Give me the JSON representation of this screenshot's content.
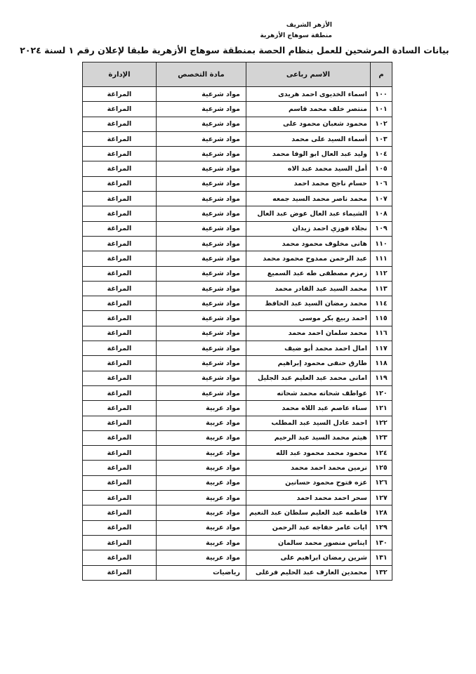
{
  "header": {
    "line1": "الأزهر الشريف",
    "line2": "منطقة سوهاج الأزهرية"
  },
  "title": "بيانات السادة المرشحين للعمل بنظام الحصة بمنطقة سوهاج الأزهرية طبقا لإعلان رقم ١ لسنة ٢٠٢٤",
  "table": {
    "columns": [
      "م",
      "الاسم رباعى",
      "مادة التخصص",
      "الإدارة"
    ],
    "rows": [
      [
        "١٠٠",
        "اسماء الخديوى احمد هريدى",
        "مواد شرعية",
        "المراغة"
      ],
      [
        "١٠١",
        "منتصر خلف محمد قاسم",
        "مواد شرعية",
        "المراغة"
      ],
      [
        "١٠٢",
        "محمود شعبان محمود على",
        "مواد شرعية",
        "المراغة"
      ],
      [
        "١٠٣",
        "أسماء السيد على محمد",
        "مواد شرعية",
        "المراغة"
      ],
      [
        "١٠٤",
        "وليد عبد العال ابو الوفا محمد",
        "مواد شرعية",
        "المراغة"
      ],
      [
        "١٠٥",
        "أمل السيد محمد عبد الاه",
        "مواد شرعية",
        "المراغة"
      ],
      [
        "١٠٦",
        "حسام ناجح محمد احمد",
        "مواد شرعية",
        "المراغة"
      ],
      [
        "١٠٧",
        "محمد ناصر محمد السيد جمعه",
        "مواد شرعية",
        "المراغة"
      ],
      [
        "١٠٨",
        "الشيماء عبد العال عوض عبد العال",
        "مواد شرعية",
        "المراغة"
      ],
      [
        "١٠٩",
        "نجلاء فوزي احمد زيدان",
        "مواد شرعية",
        "المراغة"
      ],
      [
        "١١٠",
        "هانى مخلوف محمود محمد",
        "مواد شرعية",
        "المراغة"
      ],
      [
        "١١١",
        "عبد الرحمن ممدوح محمود محمد",
        "مواد شرعية",
        "المراغة"
      ],
      [
        "١١٢",
        "زمزم مصطفى طه عبد السميع",
        "مواد شرعية",
        "المراغة"
      ],
      [
        "١١٣",
        "محمد السيد عبد القادر محمد",
        "مواد شرعية",
        "المراغة"
      ],
      [
        "١١٤",
        "محمد رمضان السيد عبد الحافظ",
        "مواد شرعية",
        "المراغة"
      ],
      [
        "١١٥",
        "احمد ربيع بكر موسى",
        "مواد شرعية",
        "المراغة"
      ],
      [
        "١١٦",
        "محمد سلمان احمد محمد",
        "مواد شرعية",
        "المراغة"
      ],
      [
        "١١٧",
        "امال احمد محمد أبو ضيف",
        "مواد شرعية",
        "المراغة"
      ],
      [
        "١١٨",
        "طارق حنفى محمود إبراهيم",
        "مواد شرعية",
        "المراغة"
      ],
      [
        "١١٩",
        "امانى محمد عبد العليم عبد الجليل",
        "مواد شرعية",
        "المراغة"
      ],
      [
        "١٢٠",
        "عواطف شحاته محمد شحاته",
        "مواد شرعية",
        "المراغة"
      ],
      [
        "١٢١",
        "سناء عاصم عبد اللاه محمد",
        "مواد عربية",
        "المراغة"
      ],
      [
        "١٢٢",
        "احمد عادل السيد عبد المطلب",
        "مواد عربية",
        "المراغة"
      ],
      [
        "١٢٣",
        "هيثم محمد السيد عبد الرحيم",
        "مواد عربية",
        "المراغة"
      ],
      [
        "١٢٤",
        "محمود محمد محمود عبد الله",
        "مواد عربية",
        "المراغة"
      ],
      [
        "١٢٥",
        "نرمين محمد احمد محمد",
        "مواد عربية",
        "المراغة"
      ],
      [
        "١٢٦",
        "عزه فتوح محمود حسانين",
        "مواد عربية",
        "المراغة"
      ],
      [
        "١٢٧",
        "سحر احمد محمد احمد",
        "مواد عربية",
        "المراغة"
      ],
      [
        "١٢٨",
        "فاطمه عبد العليم سلطان عبد النعيم",
        "مواد عربية",
        "المراغة"
      ],
      [
        "١٢٩",
        "ايات عامر خفاجه عبد الرحمن",
        "مواد عربية",
        "المراغة"
      ],
      [
        "١٣٠",
        "ايناس منصور محمد سالمان",
        "مواد عربية",
        "المراغة"
      ],
      [
        "١٣١",
        "شرين رمضان ابراهيم على",
        "مواد عربية",
        "المراغة"
      ],
      [
        "١٣٢",
        "محمدين العارف عبد الحليم فرغلى",
        "رياضيات",
        "المراغة"
      ]
    ]
  }
}
